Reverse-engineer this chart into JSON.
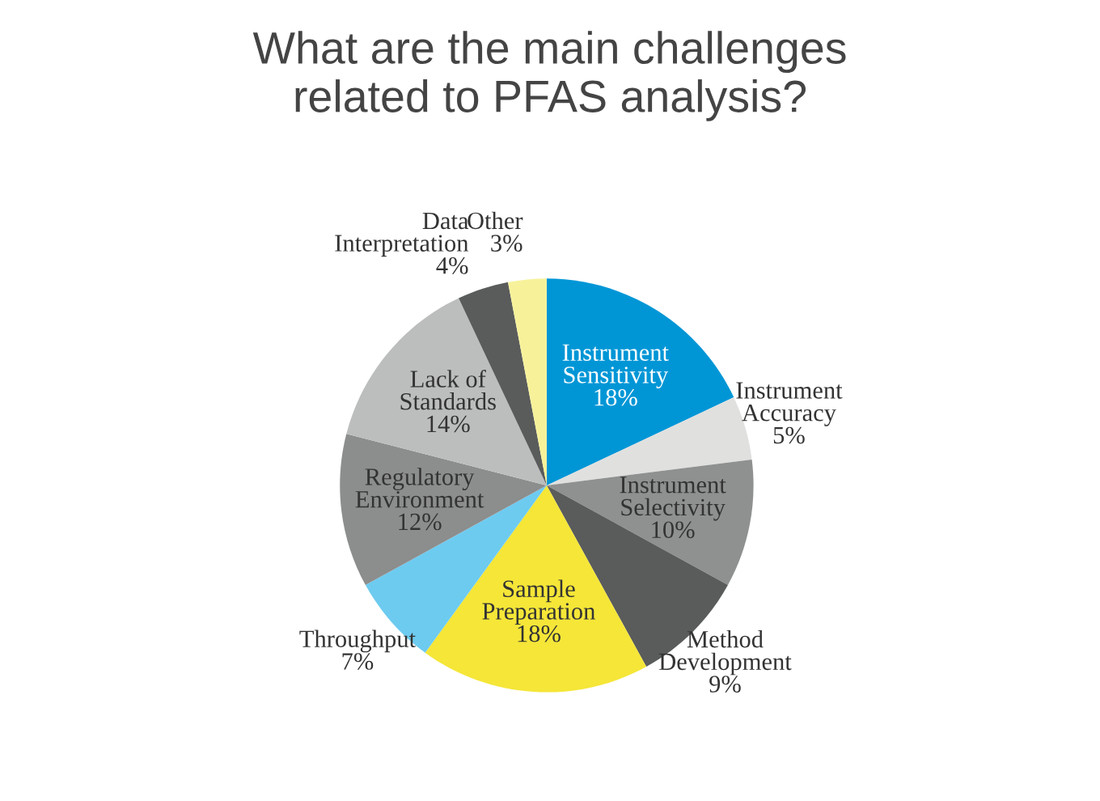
{
  "chart_data": {
    "type": "pie",
    "title": "What are the main challenges\nrelated to PFAS analysis?",
    "categories": [
      "Instrument Sensitivity",
      "Instrument Accuracy",
      "Instrument Selectivity",
      "Method Development",
      "Sample Preparation",
      "Throughput",
      "Regulatory Environment",
      "Lack of Standards",
      "Data Interpretation",
      "Other"
    ],
    "values": [
      18,
      5,
      10,
      9,
      18,
      7,
      12,
      14,
      4,
      3
    ],
    "colors": [
      "#0096d6",
      "#e0e0df",
      "#8f9090",
      "#5a5c5c",
      "#f5e638",
      "#6dcbf0",
      "#8c8d8d",
      "#bcbdbd",
      "#5a5c5c",
      "#f7f29a"
    ],
    "value_labels": [
      "18%",
      "5%",
      "10%",
      "9%",
      "18%",
      "7%",
      "12%",
      "14%",
      "4%",
      "3%"
    ]
  }
}
